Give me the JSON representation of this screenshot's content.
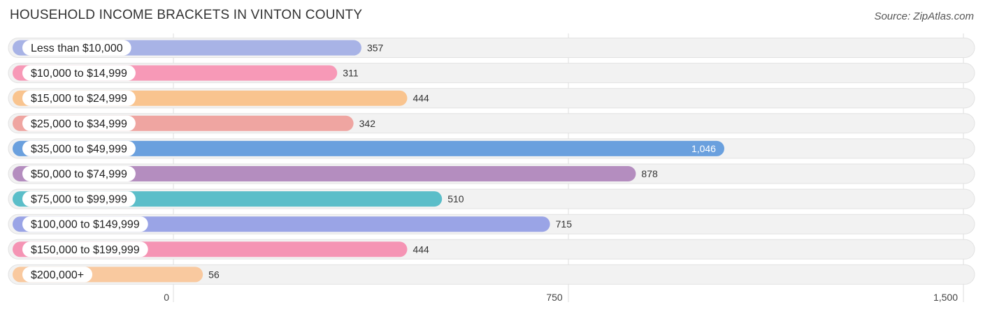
{
  "header": {
    "title": "HOUSEHOLD INCOME BRACKETS IN VINTON COUNTY",
    "source": "Source: ZipAtlas.com"
  },
  "chart_data": {
    "type": "bar",
    "orientation": "horizontal",
    "title": "HOUSEHOLD INCOME BRACKETS IN VINTON COUNTY",
    "categories": [
      "Less than $10,000",
      "$10,000 to $14,999",
      "$15,000 to $24,999",
      "$25,000 to $34,999",
      "$35,000 to $49,999",
      "$50,000 to $74,999",
      "$75,000 to $99,999",
      "$100,000 to $149,999",
      "$150,000 to $199,999",
      "$200,000+"
    ],
    "values": [
      357,
      311,
      444,
      342,
      1046,
      878,
      510,
      715,
      444,
      56
    ],
    "value_labels": [
      "357",
      "311",
      "444",
      "342",
      "1,046",
      "878",
      "510",
      "715",
      "444",
      "56"
    ],
    "colors": [
      "#a8b3e6",
      "#f799b7",
      "#f9c48f",
      "#efa5a1",
      "#6aa0de",
      "#b48dbf",
      "#5bbec9",
      "#9aa4e6",
      "#f594b4",
      "#f9c99f"
    ],
    "xlim": [
      0,
      1500
    ],
    "xticks": [
      0,
      750,
      1500
    ],
    "xtick_labels": [
      "0",
      "750",
      "1,500"
    ],
    "grid": true,
    "xlabel": "",
    "ylabel": ""
  }
}
